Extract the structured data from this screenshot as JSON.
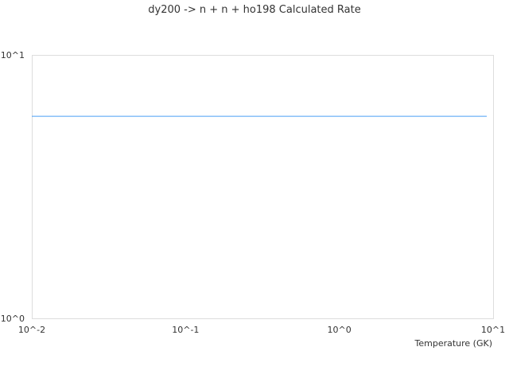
{
  "chart_data": {
    "type": "line",
    "title": "dy200 -> n + n + ho198 Calculated Rate",
    "xlabel": "Temperature (GK)",
    "ylabel": "",
    "x_scale": "log",
    "y_scale": "log",
    "xlim": [
      0.01,
      10
    ],
    "ylim": [
      1,
      10
    ],
    "x_ticks": [
      {
        "value": 0.01,
        "label": "10^-2"
      },
      {
        "value": 0.1,
        "label": "10^-1"
      },
      {
        "value": 1,
        "label": "10^0"
      },
      {
        "value": 10,
        "label": "10^1"
      }
    ],
    "y_ticks": [
      {
        "value": 1,
        "label": "10^0"
      },
      {
        "value": 10,
        "label": "10^1"
      }
    ],
    "grid": false,
    "series": [
      {
        "color": "#4a9ff5",
        "x": [
          0.01,
          9.1
        ],
        "y": [
          5.85,
          5.85
        ]
      }
    ]
  }
}
